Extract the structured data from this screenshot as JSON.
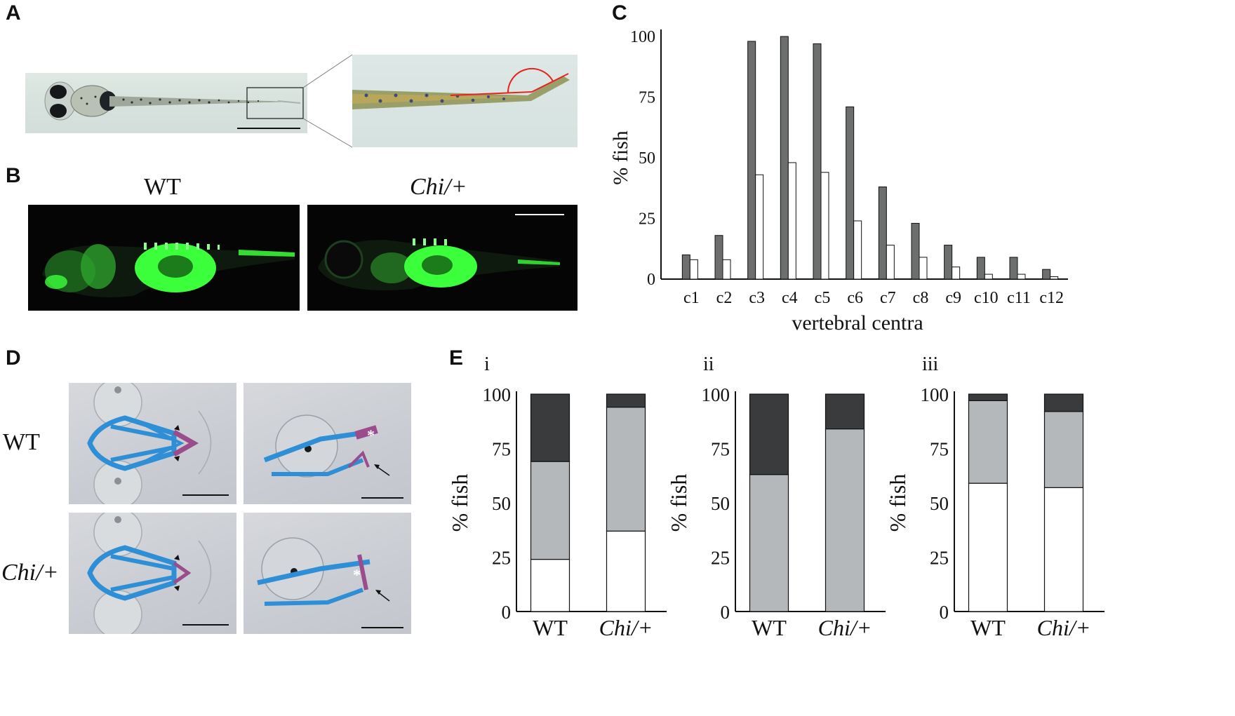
{
  "panels": {
    "A": {
      "letter": "A"
    },
    "B": {
      "letter": "B",
      "label_left": "WT",
      "label_right": "Chi/+"
    },
    "C": {
      "letter": "C"
    },
    "D": {
      "letter": "D",
      "row_top": "WT",
      "row_bottom": "Chi/+"
    },
    "E": {
      "letter": "E"
    }
  },
  "colors": {
    "dark_gray": "#6d6f6f",
    "stack_dark": "#3a3b3d",
    "stack_light": "#b5b8ba",
    "white": "#ffffff",
    "fluo_green": "#3cff3c",
    "alcian_blue": "#2f8fd6",
    "alizarin": "#9a4c8c",
    "angle_red": "#e8231e"
  },
  "chart_data": [
    {
      "id": "C",
      "type": "bar",
      "ylabel": "% fish",
      "xlabel": "vertebral centra",
      "ylim": [
        0,
        100
      ],
      "yticks": [
        0,
        25,
        50,
        75,
        100
      ],
      "categories": [
        "c1",
        "c2",
        "c3",
        "c4",
        "c5",
        "c6",
        "c7",
        "c8",
        "c9",
        "c10",
        "c11",
        "c12"
      ],
      "series": [
        {
          "color": "#6d6f6f",
          "values": [
            10,
            18,
            98,
            100,
            97,
            71,
            38,
            23,
            14,
            9,
            9,
            4
          ]
        },
        {
          "color": "#ffffff",
          "values": [
            8,
            8,
            43,
            48,
            44,
            24,
            14,
            9,
            5,
            2,
            2,
            1
          ]
        }
      ]
    },
    {
      "id": "E-i",
      "type": "bar",
      "stacked": true,
      "sublabel": "i",
      "ylabel": "% fish",
      "ylim": [
        0,
        100
      ],
      "yticks": [
        0,
        25,
        50,
        75,
        100
      ],
      "categories": [
        "WT",
        "Chi/+"
      ],
      "series": [
        {
          "color": "#ffffff",
          "values": [
            24,
            37
          ]
        },
        {
          "color": "#b5b8ba",
          "values": [
            45,
            57
          ]
        },
        {
          "color": "#3a3b3d",
          "values": [
            31,
            6
          ]
        }
      ]
    },
    {
      "id": "E-ii",
      "type": "bar",
      "stacked": true,
      "sublabel": "ii",
      "ylabel": "% fish",
      "ylim": [
        0,
        100
      ],
      "yticks": [
        0,
        25,
        50,
        75,
        100
      ],
      "categories": [
        "WT",
        "Chi/+"
      ],
      "series": [
        {
          "color": "#ffffff",
          "values": [
            0,
            0
          ]
        },
        {
          "color": "#b5b8ba",
          "values": [
            63,
            84
          ]
        },
        {
          "color": "#3a3b3d",
          "values": [
            37,
            16
          ]
        }
      ]
    },
    {
      "id": "E-iii",
      "type": "bar",
      "stacked": true,
      "sublabel": "iii",
      "ylabel": "% fish",
      "ylim": [
        0,
        100
      ],
      "yticks": [
        0,
        25,
        50,
        75,
        100
      ],
      "categories": [
        "WT",
        "Chi/+"
      ],
      "series": [
        {
          "color": "#ffffff",
          "values": [
            59,
            57
          ]
        },
        {
          "color": "#b5b8ba",
          "values": [
            38,
            35
          ]
        },
        {
          "color": "#3a3b3d",
          "values": [
            3,
            8
          ]
        }
      ]
    }
  ]
}
